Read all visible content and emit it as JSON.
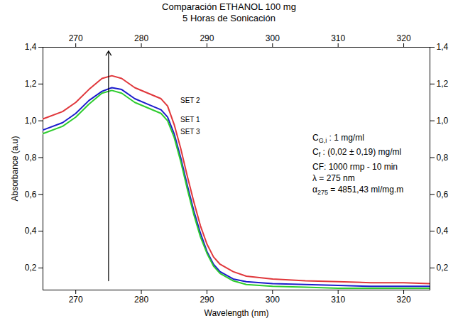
{
  "chart_data": {
    "type": "line",
    "title": "Comparación ETHANOL 100 mg",
    "subtitle": "5 Horas de Sonicación",
    "x_label": "Wavelength (nm)",
    "y_label": "Absorbance (a.u)",
    "x": [
      265,
      268,
      270,
      272,
      274,
      275.5,
      277,
      279,
      281,
      283,
      284,
      285,
      286,
      287,
      288,
      289,
      290,
      291,
      292,
      294,
      296,
      300,
      305,
      310,
      315,
      320,
      324
    ],
    "series": [
      {
        "name": "SET 2",
        "color": "#e0373b",
        "values": [
          1.01,
          1.05,
          1.1,
          1.17,
          1.23,
          1.245,
          1.23,
          1.18,
          1.15,
          1.12,
          1.08,
          0.98,
          0.85,
          0.7,
          0.56,
          0.43,
          0.33,
          0.26,
          0.22,
          0.18,
          0.155,
          0.14,
          0.13,
          0.125,
          0.12,
          0.12,
          0.115
        ]
      },
      {
        "name": "SET 1",
        "color": "#1c1ccc",
        "values": [
          0.95,
          0.99,
          1.04,
          1.11,
          1.16,
          1.18,
          1.17,
          1.12,
          1.09,
          1.06,
          1.02,
          0.93,
          0.8,
          0.65,
          0.51,
          0.39,
          0.29,
          0.22,
          0.18,
          0.14,
          0.125,
          0.115,
          0.11,
          0.105,
          0.1,
          0.1,
          0.1
        ]
      },
      {
        "name": "SET 3",
        "color": "#2ecc2e",
        "values": [
          0.93,
          0.97,
          1.02,
          1.09,
          1.15,
          1.165,
          1.15,
          1.1,
          1.07,
          1.04,
          1.0,
          0.91,
          0.78,
          0.63,
          0.49,
          0.37,
          0.28,
          0.21,
          0.17,
          0.13,
          0.11,
          0.1,
          0.095,
          0.09,
          0.09,
          0.09,
          0.09
        ]
      }
    ],
    "xlim": [
      265,
      324
    ],
    "xticks": [
      270,
      280,
      290,
      300,
      310,
      320
    ],
    "ylim": [
      0.08,
      1.4
    ],
    "yticks": [
      {
        "value": 0.2,
        "label": "0,2"
      },
      {
        "value": 0.4,
        "label": "0,4"
      },
      {
        "value": 0.6,
        "label": "0,6"
      },
      {
        "value": 0.8,
        "label": "0,8"
      },
      {
        "value": 1.0,
        "label": "1,0"
      },
      {
        "value": 1.2,
        "label": "1,2"
      },
      {
        "value": 1.4,
        "label": "1,4"
      }
    ],
    "arrow": {
      "x": 275,
      "y1": 0.13,
      "y2": 1.38
    },
    "annotations": [
      {
        "text": "C",
        "sub": "G,i",
        "after": " : 1 mg/ml"
      },
      {
        "text": "C",
        "sub": "f",
        "after": " : (0,02 ± 0,19) mg/ml"
      },
      {
        "text": "CF: 1000 rmp - 10 min"
      },
      {
        "text": "λ = 275 nm"
      },
      {
        "text": "α",
        "sub": "275",
        "after": " = 4851,43 ml/mg.m"
      }
    ]
  }
}
